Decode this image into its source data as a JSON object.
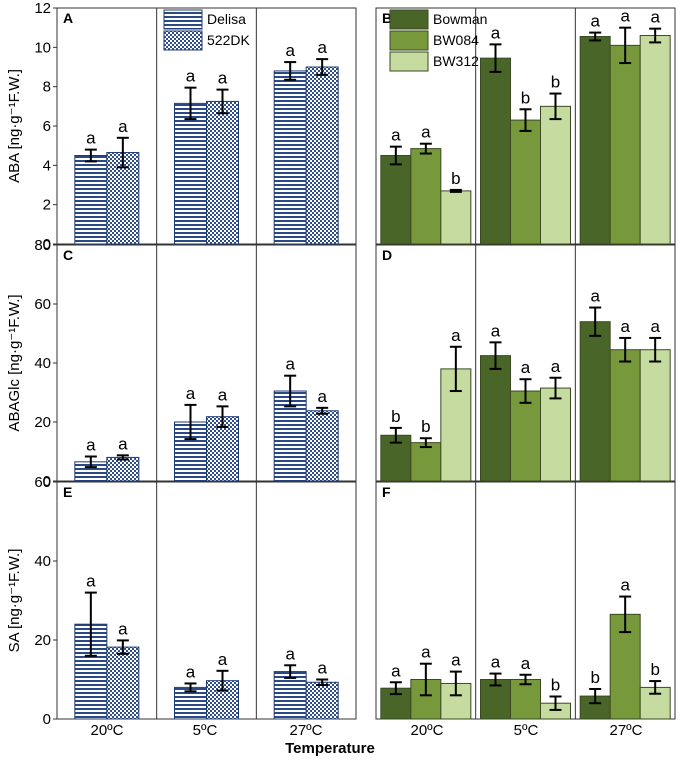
{
  "colors": {
    "delisa_stroke": "#1f3b73",
    "delisa_fill": "#ffffff",
    "dk_fill": "#2e4f8c",
    "bowman": "#4a6528",
    "bw084": "#77993c",
    "bw312": "#c5dba0"
  },
  "figure": {
    "xlabel": "Temperature",
    "temperatures": [
      "20ºC",
      "5ºC",
      "27ºC"
    ]
  },
  "chart_data": [
    {
      "id": "A",
      "label": "A",
      "type": "bar",
      "style": "pattern",
      "ylabel": "ABA [ng·g⁻¹F.W.]",
      "ylim": [
        0,
        12
      ],
      "yticks": [
        0,
        2,
        4,
        6,
        8,
        10,
        12
      ],
      "categories": [
        "20ºC",
        "5ºC",
        "27ºC"
      ],
      "series": [
        {
          "name": "Delisa",
          "key": "delisa",
          "values": [
            4.5,
            7.15,
            8.8
          ],
          "errors": [
            0.3,
            0.8,
            0.45
          ],
          "letters": [
            "a",
            "a",
            "a"
          ]
        },
        {
          "name": "522DK",
          "key": "dk",
          "values": [
            4.65,
            7.25,
            9.0
          ],
          "errors": [
            0.75,
            0.6,
            0.4
          ],
          "letters": [
            "a",
            "a",
            "a"
          ]
        }
      ],
      "legend": "top"
    },
    {
      "id": "B",
      "label": "B",
      "type": "bar",
      "style": "solid",
      "ylabel": "",
      "ylim": [
        0,
        12
      ],
      "yticks": [],
      "categories": [
        "20ºC",
        "5ºC",
        "27ºC"
      ],
      "series": [
        {
          "name": "Bowman",
          "key": "bowman",
          "values": [
            4.5,
            9.45,
            10.55
          ],
          "errors": [
            0.45,
            0.7,
            0.2
          ],
          "letters": [
            "a",
            "a",
            "a"
          ]
        },
        {
          "name": "BW084",
          "key": "bw084",
          "values": [
            4.85,
            6.3,
            10.1
          ],
          "errors": [
            0.25,
            0.55,
            0.9
          ],
          "letters": [
            "a",
            "b",
            "a"
          ]
        },
        {
          "name": "BW312",
          "key": "bw312",
          "values": [
            2.7,
            7.0,
            10.6
          ],
          "errors": [
            0.05,
            0.65,
            0.35
          ],
          "letters": [
            "b",
            "b",
            "a"
          ]
        }
      ],
      "legend": "top-left"
    },
    {
      "id": "C",
      "label": "C",
      "type": "bar",
      "style": "pattern",
      "ylabel": "ABAGlc [ng·g⁻¹F.W.]",
      "ylim": [
        0,
        80
      ],
      "yticks": [
        0,
        20,
        40,
        60,
        80
      ],
      "categories": [
        "20ºC",
        "5ºC",
        "27ºC"
      ],
      "series": [
        {
          "name": "Delisa",
          "key": "delisa",
          "values": [
            6.5,
            20.0,
            30.5
          ],
          "errors": [
            1.8,
            5.8,
            5.2
          ],
          "letters": [
            "a",
            "a",
            "a"
          ]
        },
        {
          "name": "522DK",
          "key": "dk",
          "values": [
            8.0,
            21.8,
            23.8
          ],
          "errors": [
            0.7,
            3.5,
            1.0
          ],
          "letters": [
            "a",
            "a",
            "a"
          ]
        }
      ]
    },
    {
      "id": "D",
      "label": "D",
      "type": "bar",
      "style": "solid",
      "ylabel": "",
      "ylim": [
        0,
        80
      ],
      "yticks": [],
      "categories": [
        "20ºC",
        "5ºC",
        "27ºC"
      ],
      "series": [
        {
          "name": "Bowman",
          "key": "bowman",
          "values": [
            15.5,
            42.5,
            54.0
          ],
          "errors": [
            2.5,
            4.5,
            4.8
          ],
          "letters": [
            "b",
            "a",
            "a"
          ]
        },
        {
          "name": "BW084",
          "key": "bw084",
          "values": [
            13.0,
            30.5,
            44.5
          ],
          "errors": [
            1.5,
            4.0,
            4.0
          ],
          "letters": [
            "b",
            "a",
            "a"
          ]
        },
        {
          "name": "BW312",
          "key": "bw312",
          "values": [
            38.0,
            31.5,
            44.5
          ],
          "errors": [
            7.5,
            3.5,
            4.0
          ],
          "letters": [
            "a",
            "a",
            "a"
          ]
        }
      ]
    },
    {
      "id": "E",
      "label": "E",
      "type": "bar",
      "style": "pattern",
      "ylabel": "SA [ng·g⁻¹F.W.]",
      "ylim": [
        0,
        60
      ],
      "yticks": [
        0,
        20,
        40,
        60
      ],
      "categories": [
        "20ºC",
        "5ºC",
        "27ºC"
      ],
      "series": [
        {
          "name": "Delisa",
          "key": "delisa",
          "values": [
            24.0,
            8.0,
            12.0
          ],
          "errors": [
            8.0,
            1.0,
            1.6
          ],
          "letters": [
            "a",
            "a",
            "a"
          ]
        },
        {
          "name": "522DK",
          "key": "dk",
          "values": [
            18.2,
            9.7,
            9.3
          ],
          "errors": [
            1.7,
            2.5,
            0.7
          ],
          "letters": [
            "a",
            "a",
            "a"
          ]
        }
      ]
    },
    {
      "id": "F",
      "label": "F",
      "type": "bar",
      "style": "solid",
      "ylabel": "",
      "ylim": [
        0,
        60
      ],
      "yticks": [],
      "categories": [
        "20ºC",
        "5ºC",
        "27ºC"
      ],
      "series": [
        {
          "name": "Bowman",
          "key": "bowman",
          "values": [
            7.8,
            10.0,
            5.8
          ],
          "errors": [
            1.5,
            1.5,
            1.8
          ],
          "letters": [
            "a",
            "a",
            "b"
          ]
        },
        {
          "name": "BW084",
          "key": "bw084",
          "values": [
            10.0,
            10.0,
            26.5
          ],
          "errors": [
            4.0,
            1.2,
            4.5
          ],
          "letters": [
            "a",
            "a",
            "a"
          ]
        },
        {
          "name": "BW312",
          "key": "bw312",
          "values": [
            9.0,
            4.0,
            8.0
          ],
          "errors": [
            3.0,
            1.7,
            1.6
          ],
          "letters": [
            "a",
            "b",
            "b"
          ]
        }
      ]
    }
  ]
}
